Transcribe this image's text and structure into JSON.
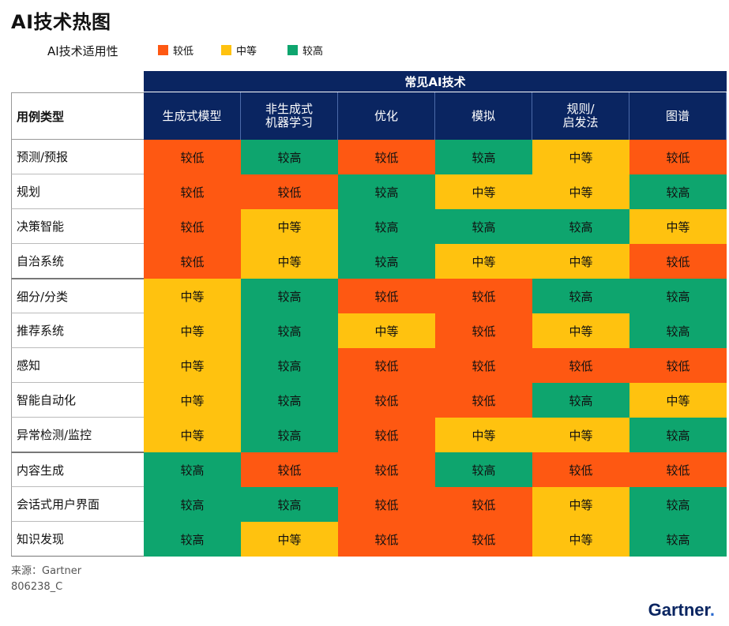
{
  "title": "AI技术热图",
  "subtitle": "AI技术适用性",
  "legend": [
    {
      "label": "较低",
      "color": "#fe5812"
    },
    {
      "label": "中等",
      "color": "#ffc20f"
    },
    {
      "label": "较高",
      "color": "#0ea56e"
    }
  ],
  "row_header_title": "用例类型",
  "source": "来源：Gartner",
  "code": "806238_C",
  "brand": "Gartner",
  "chart_data": {
    "type": "heatmap",
    "title": "常见AI技术",
    "columns": [
      "生成式模型",
      "非生成式\n机器学习",
      "优化",
      "模拟",
      "规则/\n启发法",
      "图谱"
    ],
    "rows": [
      "预测/预报",
      "规划",
      "决策智能",
      "自治系统",
      "细分/分类",
      "推荐系统",
      "感知",
      "智能自动化",
      "异常检测/监控",
      "内容生成",
      "会话式用户界面",
      "知识发现"
    ],
    "groups": [
      [
        0,
        3
      ],
      [
        4,
        8
      ],
      [
        9,
        11
      ]
    ],
    "levels": {
      "较低": "#fe5812",
      "中等": "#ffc20f",
      "较高": "#0ea56e"
    },
    "values": [
      [
        "较低",
        "较高",
        "较低",
        "较高",
        "中等",
        "较低"
      ],
      [
        "较低",
        "较低",
        "较高",
        "中等",
        "中等",
        "较高"
      ],
      [
        "较低",
        "中等",
        "较高",
        "较高",
        "较高",
        "中等"
      ],
      [
        "较低",
        "中等",
        "较高",
        "中等",
        "中等",
        "较低"
      ],
      [
        "中等",
        "较高",
        "较低",
        "较低",
        "较高",
        "较高"
      ],
      [
        "中等",
        "较高",
        "中等",
        "较低",
        "中等",
        "较高"
      ],
      [
        "中等",
        "较高",
        "较低",
        "较低",
        "较低",
        "较低"
      ],
      [
        "中等",
        "较高",
        "较低",
        "较低",
        "较高",
        "中等"
      ],
      [
        "中等",
        "较高",
        "较低",
        "中等",
        "中等",
        "较高"
      ],
      [
        "较高",
        "较低",
        "较低",
        "较高",
        "较低",
        "较低"
      ],
      [
        "较高",
        "较高",
        "较低",
        "较低",
        "中等",
        "较高"
      ],
      [
        "较高",
        "中等",
        "较低",
        "较低",
        "中等",
        "较高"
      ]
    ]
  }
}
